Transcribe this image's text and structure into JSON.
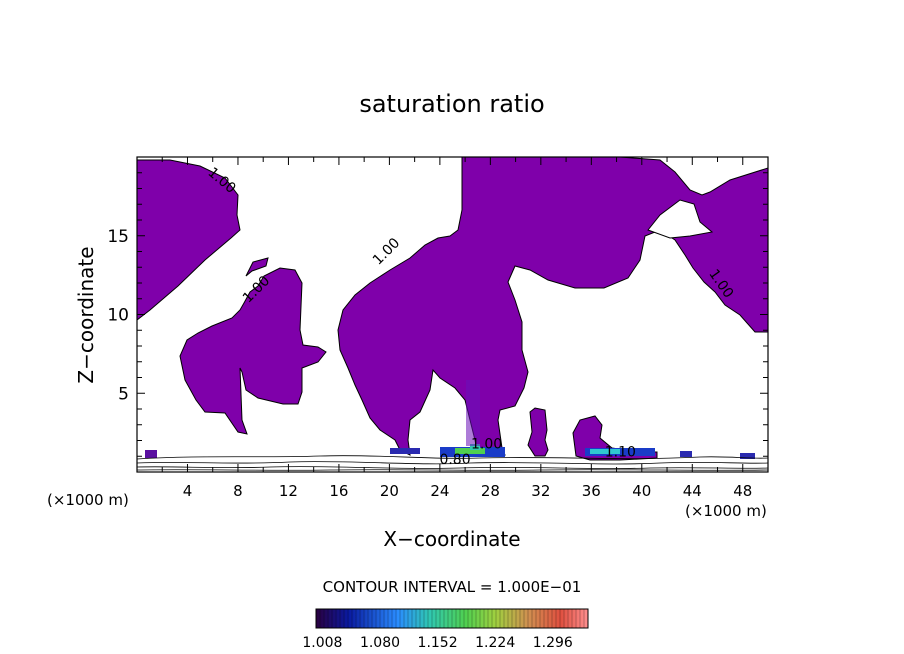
{
  "chart_data": {
    "type": "heatmap",
    "title": "saturation ratio",
    "xlabel": "X−coordinate",
    "ylabel": "Z−coordinate",
    "x_unit_left": "(×1000 m)",
    "x_unit_right": "(×1000 m)",
    "xlim": [
      0,
      50
    ],
    "ylim": [
      0,
      20
    ],
    "x_ticks": [
      4,
      8,
      12,
      16,
      20,
      24,
      28,
      32,
      36,
      40,
      44,
      48
    ],
    "y_ticks": [
      5,
      10,
      15
    ],
    "contour_labels": [
      {
        "text": "1.00",
        "x": 6.5,
        "z": 18.3
      },
      {
        "text": "1.00",
        "x": 9.7,
        "z": 11.4
      },
      {
        "text": "1.00",
        "x": 20.0,
        "z": 13.8
      },
      {
        "text": "1.00",
        "x": 46.0,
        "z": 11.8
      },
      {
        "text": "0.80",
        "x": 25.2,
        "z": 0.5
      },
      {
        "text": "1.00",
        "x": 27.7,
        "z": 1.5
      },
      {
        "text": "1.10",
        "x": 38.3,
        "z": 1.0
      }
    ],
    "contour_interval_label": "CONTOUR INTERVAL = 1.000E−01",
    "colorbar": {
      "tick_labels": [
        "1.008",
        "1.080",
        "1.152",
        "1.224",
        "1.296"
      ],
      "min": 1.0,
      "max": 1.34
    },
    "colors": {
      "fill": "#7f00aa",
      "colormap": [
        "#2a0040",
        "#0a1aa0",
        "#2a8cff",
        "#30c8b0",
        "#50d050",
        "#a0d040",
        "#d09050",
        "#e05040",
        "#ff9090"
      ]
    }
  }
}
